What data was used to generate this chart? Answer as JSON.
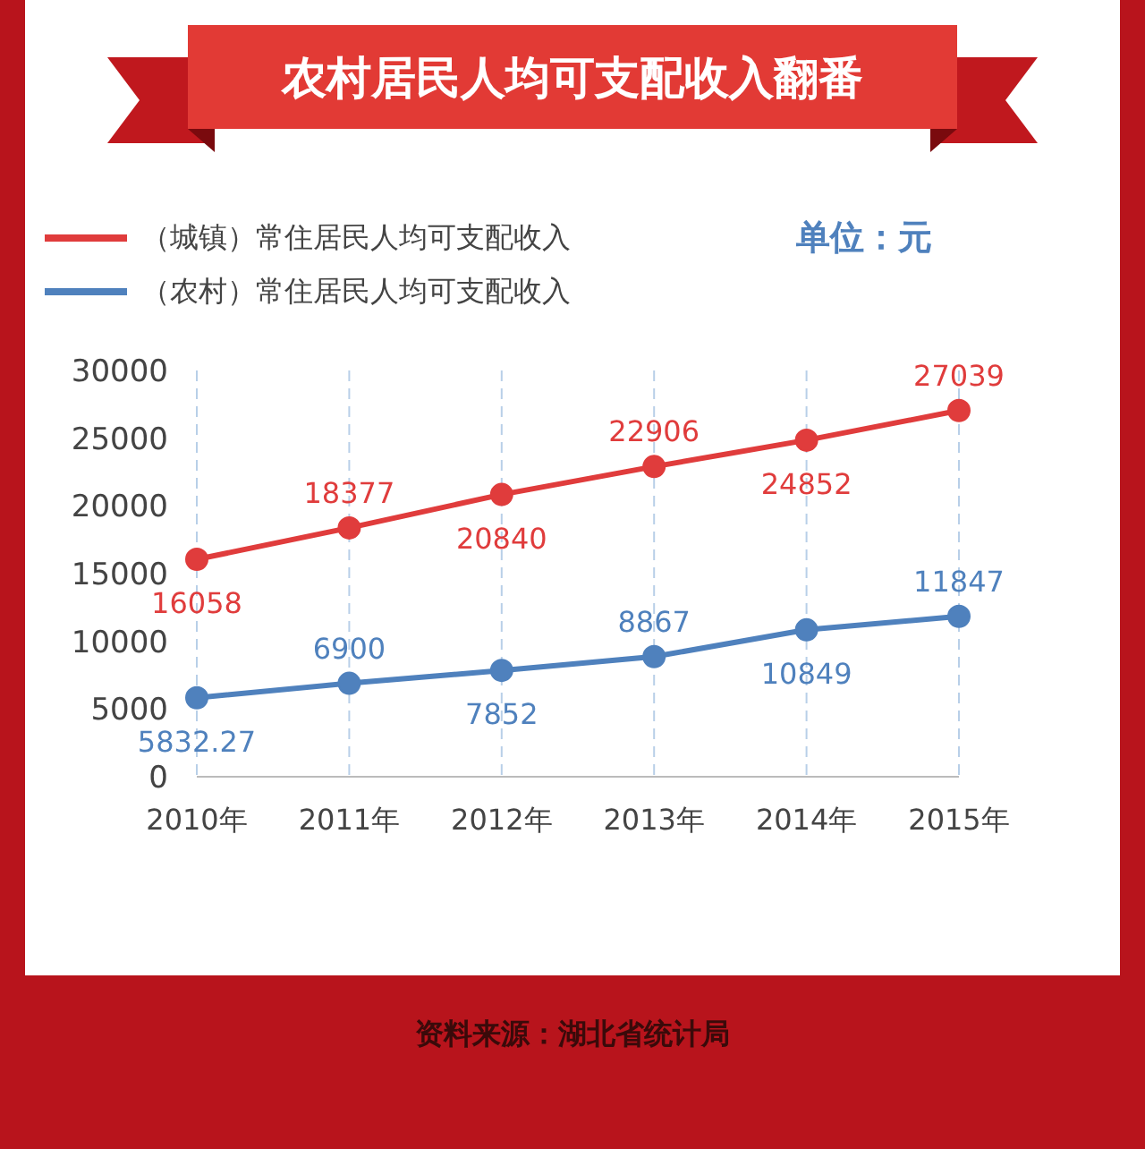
{
  "chart_data": {
    "type": "line",
    "title": "农村居民人均可支配收入翻番",
    "ylabel": "单位：元",
    "categories": [
      "2010年",
      "2011年",
      "2012年",
      "2013年",
      "2014年",
      "2015年"
    ],
    "series": [
      {
        "name": "（城镇）常住居民人均可支配收入",
        "color": "#e03c3c",
        "values": [
          16058,
          18377,
          20840,
          22906,
          24852,
          27039
        ]
      },
      {
        "name": "（农村）常住居民人均可支配收入",
        "color": "#4f81bd",
        "values": [
          5832.27,
          6900,
          7852,
          8867,
          10849,
          11847
        ]
      }
    ],
    "ylim": [
      0,
      30000
    ],
    "yticks": [
      0,
      5000,
      10000,
      15000,
      20000,
      25000,
      30000
    ],
    "grid": "x",
    "legend": "top left",
    "marker": "circle",
    "line_style": "solid",
    "data_labels": true,
    "annotations": [
      "资料来源：湖北省统计局"
    ]
  }
}
